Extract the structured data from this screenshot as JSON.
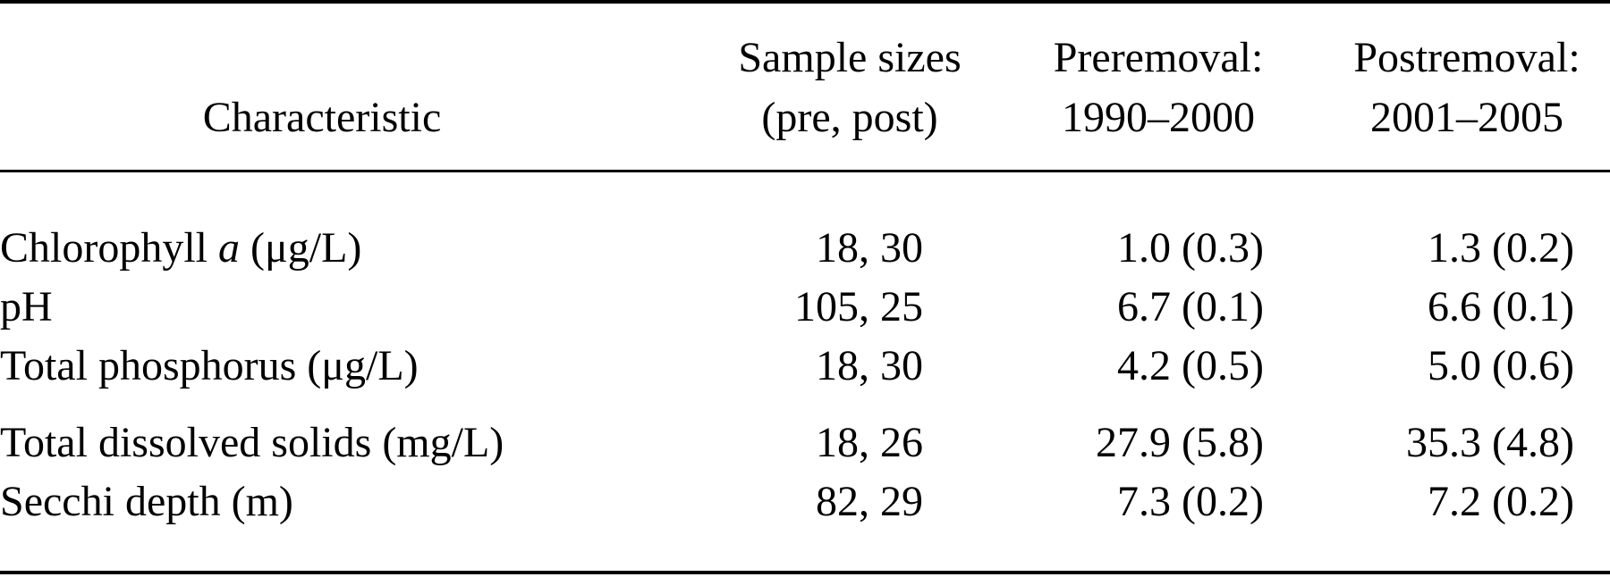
{
  "table": {
    "header": {
      "characteristic": "Characteristic",
      "sample_sizes_line1": "Sample sizes",
      "sample_sizes_line2": "(pre, post)",
      "preremoval_line1": "Preremoval:",
      "preremoval_line2": "1990–2000",
      "postremoval_line1": "Postremoval:",
      "postremoval_line2": "2001–2005"
    },
    "rows": [
      {
        "label_pre": "Chlorophyll ",
        "label_italic": "a",
        "label_post": " (μg/L)",
        "sample_sizes": "18, 30",
        "preremoval": "1.0 (0.3)",
        "postremoval": "1.3 (0.2)"
      },
      {
        "label": "pH",
        "sample_sizes": "105, 25",
        "preremoval": "6.7 (0.1)",
        "postremoval": "6.6 (0.1)"
      },
      {
        "label": "Total phosphorus (μg/L)",
        "sample_sizes": "18, 30",
        "preremoval": "4.2 (0.5)",
        "postremoval": "5.0 (0.6)"
      },
      {
        "label": "Total dissolved solids (mg/L)",
        "sample_sizes": "18, 26",
        "preremoval": "27.9 (5.8)",
        "postremoval": "35.3 (4.8)"
      },
      {
        "label": "Secchi depth (m)",
        "sample_sizes": "82, 29",
        "preremoval": "7.3 (0.2)",
        "postremoval": "7.2 (0.2)"
      }
    ]
  }
}
